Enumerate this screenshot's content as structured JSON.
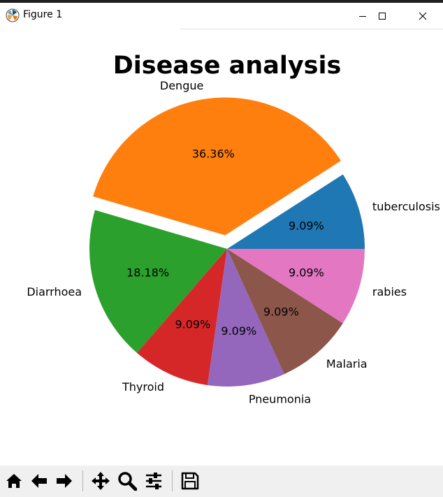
{
  "window": {
    "title": "Figure 1",
    "controls": [
      "minimize",
      "maximize",
      "close"
    ]
  },
  "toolbar": {
    "buttons": [
      {
        "icon": "home-icon",
        "tooltip": "Home"
      },
      {
        "icon": "back-arrow-icon",
        "tooltip": "Back"
      },
      {
        "icon": "forward-arrow-icon",
        "tooltip": "Forward"
      },
      {
        "icon": "pan-icon",
        "tooltip": "Pan"
      },
      {
        "icon": "zoom-icon",
        "tooltip": "Zoom"
      },
      {
        "icon": "configure-subplots-icon",
        "tooltip": "Configure subplots"
      },
      {
        "icon": "save-icon",
        "tooltip": "Save"
      }
    ]
  },
  "chart_data": {
    "type": "pie",
    "title": "Disease analysis",
    "slices": [
      {
        "label": "tuberculosis",
        "value": 1,
        "pct_label": "9.09%",
        "color": "#1f77b4",
        "explode": 0
      },
      {
        "label": "Dengue",
        "value": 4,
        "pct_label": "36.36%",
        "color": "#ff7f0e",
        "explode": 0.1
      },
      {
        "label": "Diarrhoea",
        "value": 2,
        "pct_label": "18.18%",
        "color": "#2ca02c",
        "explode": 0
      },
      {
        "label": "Thyroid",
        "value": 1,
        "pct_label": "9.09%",
        "color": "#d62728",
        "explode": 0
      },
      {
        "label": "Pneumonia",
        "value": 1,
        "pct_label": "9.09%",
        "color": "#9467bd",
        "explode": 0
      },
      {
        "label": "Malaria",
        "value": 1,
        "pct_label": "9.09%",
        "color": "#8c564b",
        "explode": 0
      },
      {
        "label": "rabies",
        "value": 1,
        "pct_label": "9.09%",
        "color": "#e377c2",
        "explode": 0
      }
    ],
    "start_angle": 0,
    "direction": "counterclockwise"
  }
}
